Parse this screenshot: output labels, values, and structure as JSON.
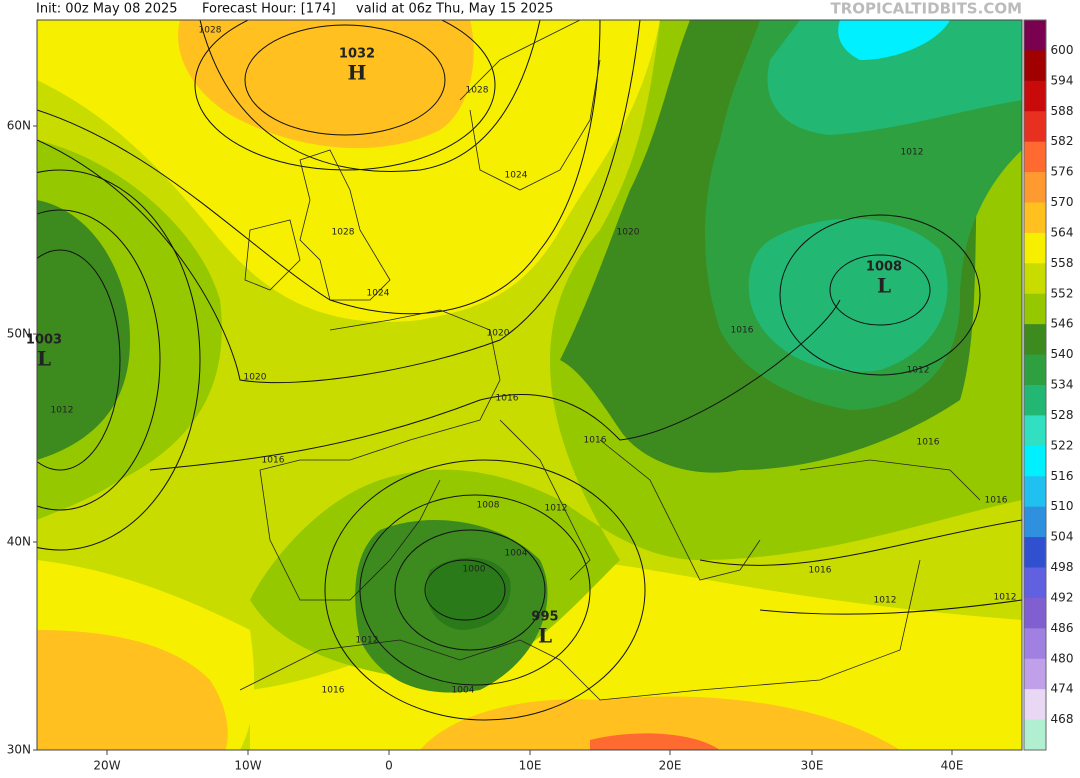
{
  "header": {
    "init": "Init: 00z May 08 2025",
    "forecast_hour": "Forecast Hour: [174]",
    "valid": "valid at 06z Thu, May 15 2025",
    "brand": "TROPICALTIDBITS.COM"
  },
  "latitude_labels": [
    "60N",
    "50N",
    "40N",
    "30N"
  ],
  "longitude_labels": [
    "20W",
    "10W",
    "0",
    "10E",
    "20E",
    "30E",
    "40E"
  ],
  "centers": [
    {
      "pressure": "1032",
      "letter": "H",
      "color": "#1a3fb0"
    },
    {
      "pressure": "1003",
      "letter": "L",
      "color": "#d0202a"
    },
    {
      "pressure": "1008",
      "letter": "L",
      "color": "#d0202a"
    },
    {
      "pressure": "995",
      "letter": "L",
      "color": "#d0202a"
    }
  ],
  "isobar_labels": [
    "1028",
    "1028",
    "1024",
    "1028",
    "1024",
    "1020",
    "1020",
    "1020",
    "1016",
    "1016",
    "1016",
    "1008",
    "1012",
    "1004",
    "1000",
    "1012",
    "1004",
    "1016",
    "1012",
    "1012",
    "1016",
    "1012",
    "1016",
    "1016",
    "1016",
    "1012",
    "1012"
  ],
  "colorbar": {
    "levels": [
      600,
      594,
      588,
      582,
      576,
      570,
      564,
      558,
      552,
      546,
      540,
      534,
      528,
      522,
      516,
      510,
      504,
      498,
      492,
      486,
      480,
      474,
      468
    ],
    "colors": [
      "#7a0050",
      "#a00000",
      "#c80a0a",
      "#e83020",
      "#ff6a30",
      "#ff9a30",
      "#ffc020",
      "#f6f000",
      "#c8dc00",
      "#96c800",
      "#3d8a1e",
      "#2ea040",
      "#22b873",
      "#30e0c0",
      "#00f0ff",
      "#20c0f0",
      "#3090e0",
      "#3050d0",
      "#6060e0",
      "#8060d0",
      "#a080e0",
      "#c0a0e8",
      "#e8d8f4",
      "#b0f0d0"
    ]
  }
}
